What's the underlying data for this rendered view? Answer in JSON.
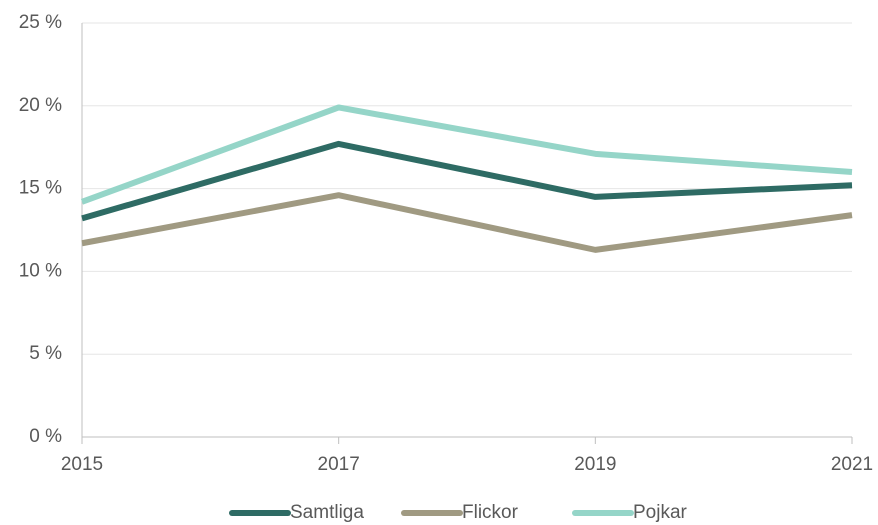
{
  "chart_data": {
    "type": "line",
    "x": [
      2015,
      2017,
      2019,
      2021
    ],
    "xlim": [
      2015,
      2021
    ],
    "xticks": [
      2015,
      2017,
      2019,
      2021
    ],
    "ylim": [
      0,
      25
    ],
    "yticks": [
      {
        "value": 0,
        "label": "0 %"
      },
      {
        "value": 5,
        "label": "5 %"
      },
      {
        "value": 10,
        "label": "10 %"
      },
      {
        "value": 15,
        "label": "15 %"
      },
      {
        "value": 20,
        "label": "20 %"
      },
      {
        "value": 25,
        "label": "25 %"
      }
    ],
    "grid": true,
    "legend": "bottom",
    "series": [
      {
        "name": "Samtliga",
        "color": "#2e6b64",
        "values": [
          13.2,
          17.7,
          14.5,
          15.2
        ]
      },
      {
        "name": "Flickor",
        "color": "#a09a82",
        "values": [
          11.7,
          14.6,
          11.3,
          13.4
        ]
      },
      {
        "name": "Pojkar",
        "color": "#95d5c8",
        "values": [
          14.2,
          19.9,
          17.1,
          16.0
        ]
      }
    ]
  }
}
